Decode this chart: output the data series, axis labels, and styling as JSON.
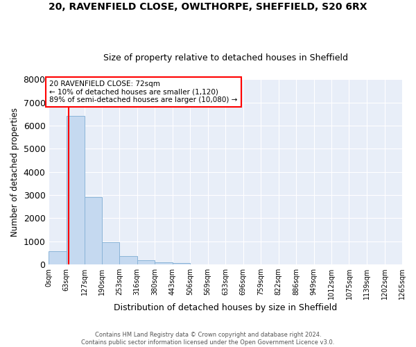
{
  "title": "20, RAVENFIELD CLOSE, OWLTHORPE, SHEFFIELD, S20 6RX",
  "subtitle": "Size of property relative to detached houses in Sheffield",
  "xlabel": "Distribution of detached houses by size in Sheffield",
  "ylabel": "Number of detached properties",
  "bar_color": "#c5d9f0",
  "bar_edge_color": "#8ab4d8",
  "background_color": "#e8eef8",
  "grid_color": "#ffffff",
  "bins": [
    0,
    63,
    127,
    190,
    253,
    316,
    380,
    443,
    506,
    569,
    633,
    696,
    759,
    822,
    886,
    949,
    1012,
    1075,
    1139,
    1202,
    1265
  ],
  "bin_labels": [
    "0sqm",
    "63sqm",
    "127sqm",
    "190sqm",
    "253sqm",
    "316sqm",
    "380sqm",
    "443sqm",
    "506sqm",
    "569sqm",
    "633sqm",
    "696sqm",
    "759sqm",
    "822sqm",
    "886sqm",
    "949sqm",
    "1012sqm",
    "1075sqm",
    "1139sqm",
    "1202sqm",
    "1265sqm"
  ],
  "values": [
    560,
    6420,
    2920,
    970,
    360,
    170,
    100,
    60,
    0,
    0,
    0,
    0,
    0,
    0,
    0,
    0,
    0,
    0,
    0,
    0
  ],
  "property_line_x": 72,
  "ylim": [
    0,
    8000
  ],
  "yticks": [
    0,
    1000,
    2000,
    3000,
    4000,
    5000,
    6000,
    7000,
    8000
  ],
  "annotation_title": "20 RAVENFIELD CLOSE: 72sqm",
  "annotation_line1": "← 10% of detached houses are smaller (1,120)",
  "annotation_line2": "89% of semi-detached houses are larger (10,080) →",
  "footer1": "Contains HM Land Registry data © Crown copyright and database right 2024.",
  "footer2": "Contains public sector information licensed under the Open Government Licence v3.0."
}
